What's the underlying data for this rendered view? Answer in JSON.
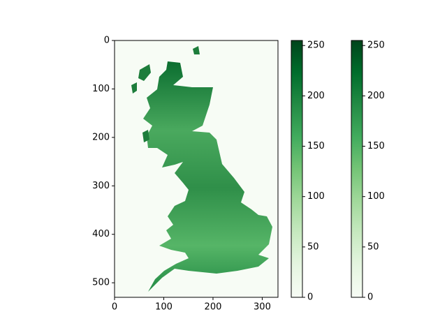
{
  "chart_data": {
    "type": "image",
    "xlim": [
      0,
      332
    ],
    "ylim": [
      530,
      0
    ],
    "xticks": [
      0,
      100,
      200,
      300
    ],
    "yticks": [
      0,
      100,
      200,
      300,
      400,
      500
    ],
    "colormap_colors": [
      "#f7fcf5",
      "#e5f5e0",
      "#c7e9c0",
      "#a1d99b",
      "#74c476",
      "#41ab5d",
      "#238b45",
      "#006d2c",
      "#00441b"
    ],
    "colorbars": [
      {
        "clim": [
          0,
          255
        ],
        "ticks": [
          0,
          50,
          100,
          150,
          200,
          250
        ]
      },
      {
        "clim": [
          0,
          255
        ],
        "ticks": [
          0,
          50,
          100,
          150,
          200,
          250
        ]
      }
    ]
  }
}
